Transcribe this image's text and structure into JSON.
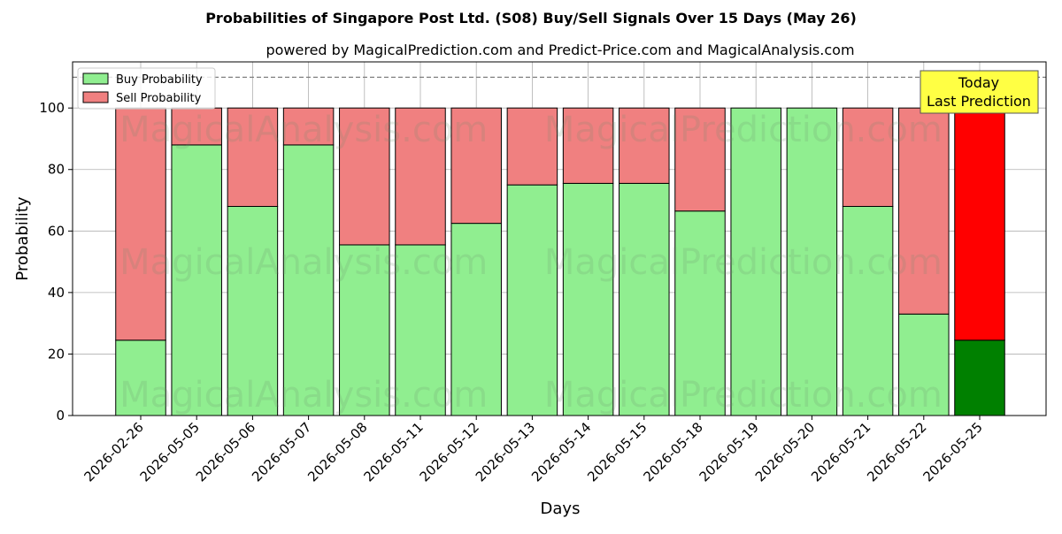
{
  "chart_data": {
    "type": "bar",
    "stacked": true,
    "title": "Probabilities of Singapore Post Ltd. (S08) Buy/Sell Signals Over 15 Days (May 26)",
    "subtitle": "powered by MagicalPrediction.com and Predict-Price.com and MagicalAnalysis.com",
    "xlabel": "Days",
    "ylabel": "Probability",
    "ylim": [
      0,
      115
    ],
    "yticks": [
      0,
      20,
      40,
      60,
      80,
      100
    ],
    "grid": true,
    "legend_position": "top-left",
    "reference_line": 110,
    "categories": [
      "2026-02-26",
      "2026-05-05",
      "2026-05-06",
      "2026-05-07",
      "2026-05-08",
      "2026-05-11",
      "2026-05-12",
      "2026-05-13",
      "2026-05-14",
      "2026-05-15",
      "2026-05-18",
      "2026-05-19",
      "2026-05-20",
      "2026-05-21",
      "2026-05-22",
      "2026-05-25"
    ],
    "series": [
      {
        "name": "Buy Probability",
        "color": "#90ee90",
        "highlight_color": "#008000",
        "values": [
          24.5,
          88,
          68,
          88,
          55.5,
          55.5,
          62.5,
          75,
          75.5,
          75.5,
          66.5,
          100,
          100,
          68,
          33,
          24.5
        ]
      },
      {
        "name": "Sell Probability",
        "color": "#f08080",
        "highlight_color": "#ff0000",
        "values": [
          75.5,
          12,
          32,
          12,
          44.5,
          44.5,
          37.5,
          25,
          24.5,
          24.5,
          33.5,
          0,
          0,
          32,
          67,
          75.5
        ]
      }
    ],
    "highlight_index": 15,
    "annotation": {
      "line1": "Today",
      "line2": "Last Prediction"
    },
    "watermark": "MagicalAnalysis.com     MagicalPrediction.com"
  }
}
